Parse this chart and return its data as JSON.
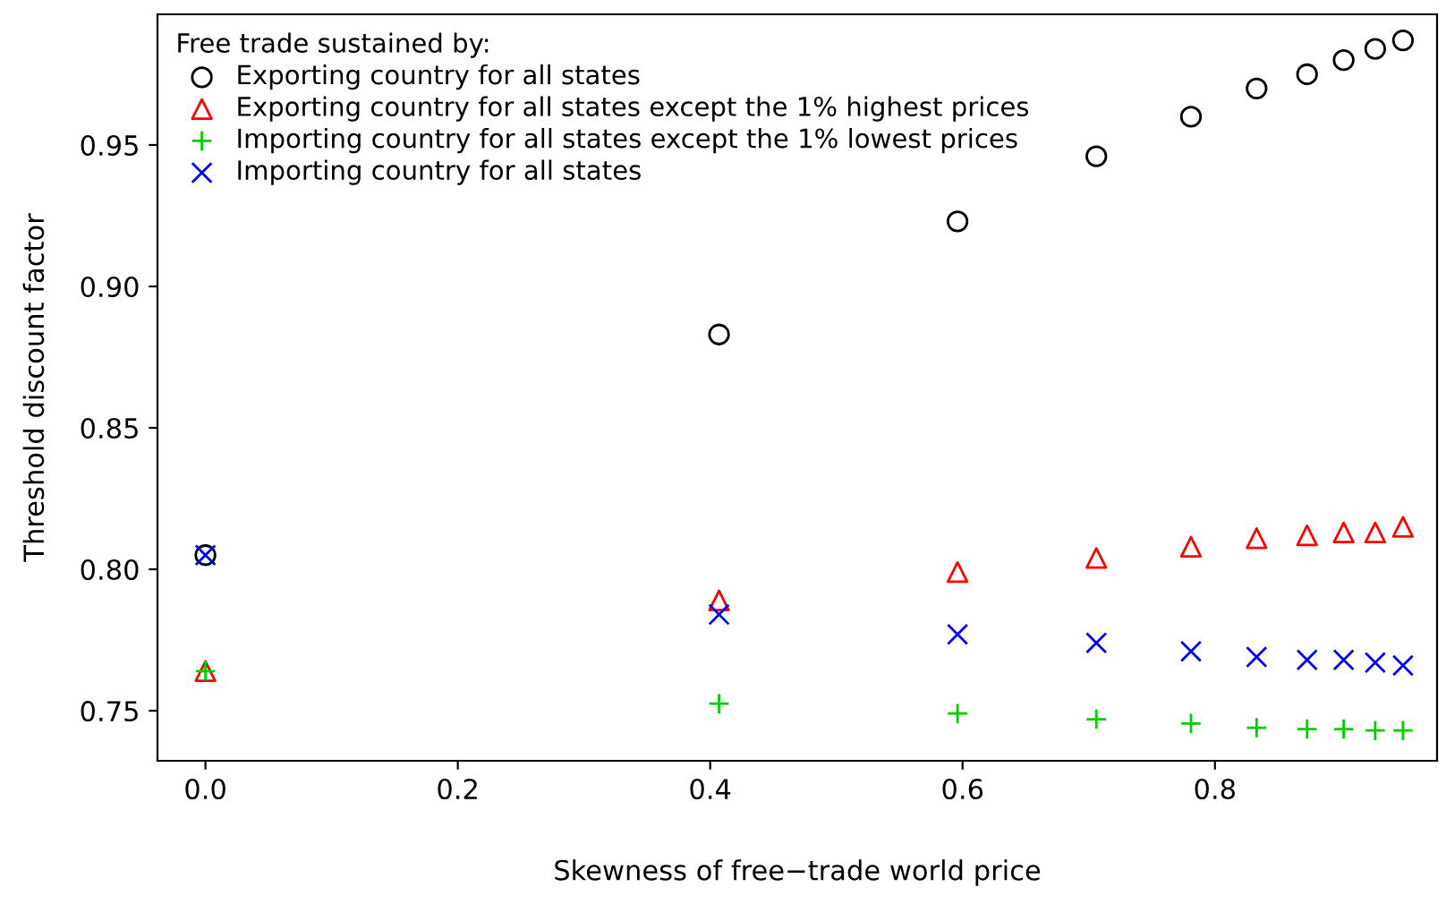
{
  "chart_data": {
    "type": "scatter",
    "xlabel": "Skewness of free−trade world price",
    "ylabel": "Threshold discount factor",
    "legend_title": "Free trade sustained by:",
    "legend": "top left",
    "grid": false,
    "x": [
      0.0,
      0.407,
      0.596,
      0.706,
      0.781,
      0.833,
      0.873,
      0.902,
      0.927,
      0.949
    ],
    "xlim": [
      -0.038,
      0.976
    ],
    "xticks": [
      {
        "value": 0.0,
        "label": "0.0"
      },
      0.2,
      0.4,
      0.6,
      0.8
    ],
    "ylim": [
      0.7323,
      0.9962
    ],
    "yticks": [
      0.75,
      {
        "value": 0.8,
        "label": "0.80"
      },
      0.85,
      {
        "value": 0.9,
        "label": "0.90"
      },
      0.95
    ],
    "series": [
      {
        "name": "Exporting country for all states",
        "color": "#000000",
        "marker": "circle",
        "values": [
          0.805,
          0.883,
          0.923,
          0.946,
          0.96,
          0.97,
          0.975,
          0.98,
          0.984,
          0.987
        ]
      },
      {
        "name": "Exporting country for all states except the 1% highest prices",
        "color": "#ff0000",
        "marker": "triangle",
        "values": [
          0.764,
          0.789,
          0.799,
          0.804,
          0.808,
          0.811,
          0.812,
          0.813,
          0.813,
          0.815
        ]
      },
      {
        "name": "Importing country for all states except the 1% lowest prices",
        "color": "#00cd00",
        "marker": "plus",
        "values": [
          0.764,
          0.7525,
          0.749,
          0.747,
          0.7455,
          0.744,
          0.7435,
          0.7435,
          0.743,
          0.743
        ]
      },
      {
        "name": "Importing country for all states",
        "color": "#0000ff",
        "marker": "cross",
        "values": [
          0.805,
          0.784,
          0.777,
          0.774,
          0.771,
          0.769,
          0.768,
          0.768,
          0.767,
          0.766
        ]
      }
    ]
  }
}
